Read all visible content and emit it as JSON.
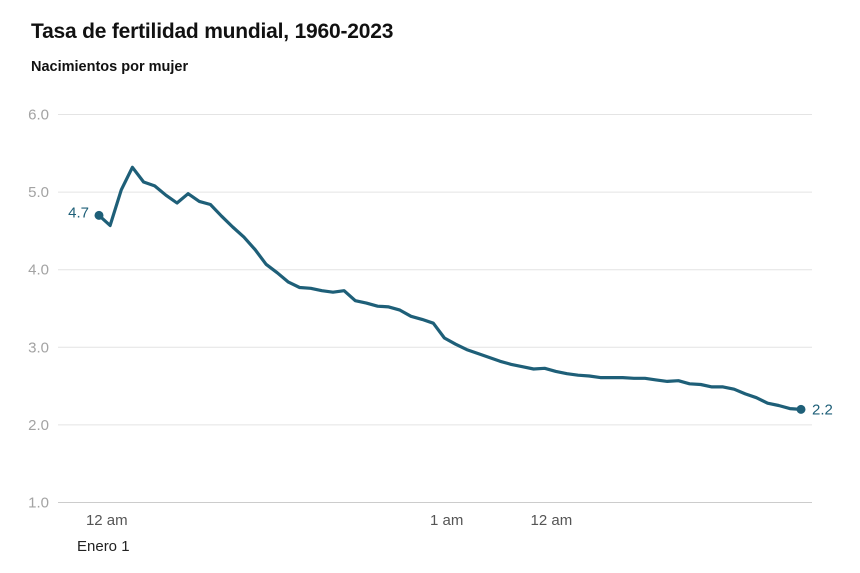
{
  "title": "Tasa de fertilidad mundial, 1960-2023",
  "subtitle": "Nacimientos por mujer",
  "colors": {
    "line": "#1e5f78",
    "grid": "#e4e4e4",
    "axis": "#cccccc"
  },
  "chart_data": {
    "type": "line",
    "title": "Tasa de fertilidad mundial, 1960-2023",
    "ylabel": "Nacimientos por mujer",
    "ylim": [
      1.0,
      6.0
    ],
    "yticks": [
      "6.0",
      "5.0",
      "4.0",
      "3.0",
      "2.0",
      "1.0"
    ],
    "xlim": [
      1960,
      2023
    ],
    "xticks": [
      {
        "x": 1960.7,
        "label": "12 am"
      },
      {
        "x": 1991.2,
        "label": "1 am"
      },
      {
        "x": 2000.6,
        "label": "12 am"
      }
    ],
    "x_sublabel": "Enero 1",
    "grid": true,
    "series": [
      {
        "x": [
          1960,
          1961,
          1962,
          1963,
          1964,
          1965,
          1966,
          1967,
          1968,
          1969,
          1970,
          1971,
          1972,
          1973,
          1974,
          1975,
          1976,
          1977,
          1978,
          1979,
          1980,
          1981,
          1982,
          1983,
          1984,
          1985,
          1986,
          1987,
          1988,
          1989,
          1990,
          1991,
          1992,
          1993,
          1994,
          1995,
          1996,
          1997,
          1998,
          1999,
          2000,
          2001,
          2002,
          2003,
          2004,
          2005,
          2006,
          2007,
          2008,
          2009,
          2010,
          2011,
          2012,
          2013,
          2014,
          2015,
          2016,
          2017,
          2018,
          2019,
          2020,
          2021,
          2022,
          2023
        ],
        "values": [
          4.7,
          4.57,
          5.03,
          5.32,
          5.13,
          5.08,
          4.96,
          4.86,
          4.98,
          4.88,
          4.84,
          4.69,
          4.55,
          4.42,
          4.26,
          4.07,
          3.96,
          3.84,
          3.77,
          3.76,
          3.73,
          3.71,
          3.73,
          3.6,
          3.57,
          3.53,
          3.52,
          3.48,
          3.4,
          3.36,
          3.31,
          3.12,
          3.04,
          2.97,
          2.92,
          2.87,
          2.82,
          2.78,
          2.75,
          2.72,
          2.73,
          2.69,
          2.66,
          2.64,
          2.63,
          2.61,
          2.61,
          2.61,
          2.6,
          2.6,
          2.58,
          2.56,
          2.57,
          2.53,
          2.52,
          2.49,
          2.49,
          2.46,
          2.4,
          2.35,
          2.28,
          2.25,
          2.21,
          2.2
        ]
      }
    ],
    "labels": [
      {
        "value": "4.7",
        "at": "start"
      },
      {
        "value": "2.2",
        "at": "end"
      }
    ]
  }
}
